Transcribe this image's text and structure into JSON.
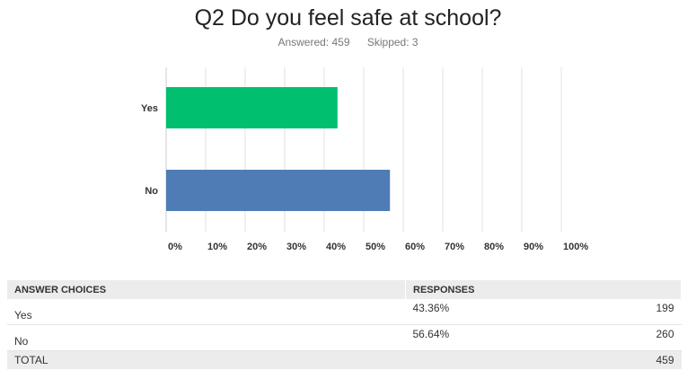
{
  "title": "Q2 Do you feel safe at school?",
  "answered_label": "Answered: 459",
  "skipped_label": "Skipped: 3",
  "chart_data": {
    "type": "bar",
    "orientation": "horizontal",
    "title": "Q2 Do you feel safe at school?",
    "categories": [
      "Yes",
      "No"
    ],
    "values": [
      43.36,
      56.64
    ],
    "colors": [
      "#00bf6f",
      "#507cb6"
    ],
    "xlim": [
      0,
      100
    ],
    "xticks": [
      "0%",
      "10%",
      "20%",
      "30%",
      "40%",
      "50%",
      "60%",
      "70%",
      "80%",
      "90%",
      "100%"
    ],
    "grid": true
  },
  "table": {
    "headers": [
      "ANSWER CHOICES",
      "RESPONSES"
    ],
    "rows": [
      {
        "choice": "Yes",
        "percent": "43.36%",
        "count": "199"
      },
      {
        "choice": "No",
        "percent": "56.64%",
        "count": "260"
      }
    ],
    "total_label": "TOTAL",
    "total": "459"
  }
}
